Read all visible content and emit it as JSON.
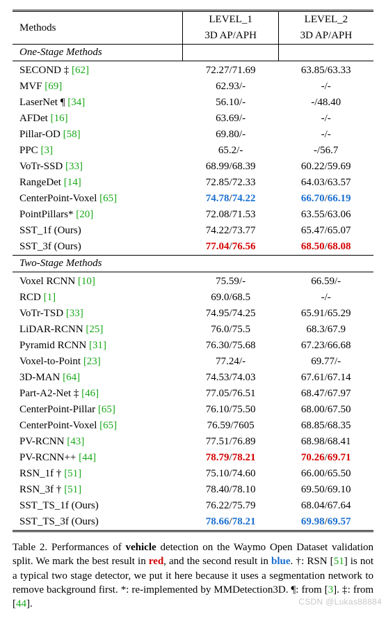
{
  "header": {
    "methods": "Methods",
    "level1_a": "LEVEL_1",
    "level1_b": "3D AP/APH",
    "level2_a": "LEVEL_2",
    "level2_b": "3D AP/APH"
  },
  "sections": {
    "one": "One-Stage Methods",
    "two": "Two-Stage Methods"
  },
  "one_stage": [
    {
      "name": "SECOND ‡ ",
      "cite": "[62]",
      "l1": {
        "text": "72.27/71.69"
      },
      "l2": {
        "text": "63.85/63.33"
      }
    },
    {
      "name": "MVF ",
      "cite": "[69]",
      "l1": {
        "text": "62.93/-"
      },
      "l2": {
        "text": "-/-"
      }
    },
    {
      "name": "LaserNet ¶ ",
      "cite": "[34]",
      "l1": {
        "text": "56.10/-"
      },
      "l2": {
        "text": "-/48.40"
      }
    },
    {
      "name": "AFDet ",
      "cite": "[16]",
      "l1": {
        "text": "63.69/-"
      },
      "l2": {
        "text": "-/-"
      }
    },
    {
      "name": "Pillar-OD ",
      "cite": "[58]",
      "l1": {
        "text": "69.80/-"
      },
      "l2": {
        "text": "-/-"
      }
    },
    {
      "name": "PPC ",
      "cite": "[3]",
      "l1": {
        "text": "65.2/-"
      },
      "l2": {
        "text": "-/56.7"
      }
    },
    {
      "name": "VoTr-SSD ",
      "cite": "[33]",
      "l1": {
        "text": "68.99/68.39"
      },
      "l2": {
        "text": "60.22/59.69"
      }
    },
    {
      "name": "RangeDet ",
      "cite": "[14]",
      "l1": {
        "text": "72.85/72.33"
      },
      "l2": {
        "text": "64.03/63.57"
      }
    },
    {
      "name": "CenterPoint-Voxel ",
      "cite": "[65]",
      "l1": {
        "a": "74.78",
        "b": "74.22",
        "a_color": "blue",
        "b_color": "blue"
      },
      "l2": {
        "a": "66.70",
        "b": "66.19",
        "a_color": "blue",
        "b_color": "blue"
      }
    },
    {
      "name": "PointPillars* ",
      "cite": "[20]",
      "l1": {
        "text": "72.08/71.53"
      },
      "l2": {
        "text": "63.55/63.06"
      }
    },
    {
      "name": "SST_1f (Ours)",
      "cite": "",
      "l1": {
        "text": "74.22/73.77"
      },
      "l2": {
        "text": "65.47/65.07"
      }
    },
    {
      "name": "SST_3f (Ours)",
      "cite": "",
      "l1": {
        "a": "77.04",
        "b": "76.56",
        "a_color": "red",
        "b_color": "red"
      },
      "l2": {
        "a": "68.50",
        "b": "68.08",
        "a_color": "red",
        "b_color": "red"
      }
    }
  ],
  "two_stage": [
    {
      "name": "Voxel RCNN ",
      "cite": "[10]",
      "l1": {
        "text": "75.59/-"
      },
      "l2": {
        "text": "66.59/-"
      }
    },
    {
      "name": "RCD ",
      "cite": "[1]",
      "l1": {
        "text": "69.0/68.5"
      },
      "l2": {
        "text": "-/-"
      }
    },
    {
      "name": "VoTr-TSD ",
      "cite": "[33]",
      "l1": {
        "text": "74.95/74.25"
      },
      "l2": {
        "text": "65.91/65.29"
      }
    },
    {
      "name": "LiDAR-RCNN ",
      "cite": "[25]",
      "l1": {
        "text": "76.0/75.5"
      },
      "l2": {
        "text": "68.3/67.9"
      }
    },
    {
      "name": "Pyramid RCNN ",
      "cite": "[31]",
      "l1": {
        "text": "76.30/75.68"
      },
      "l2": {
        "text": "67.23/66.68"
      }
    },
    {
      "name": "Voxel-to-Point ",
      "cite": "[23]",
      "l1": {
        "text": "77.24/-"
      },
      "l2": {
        "text": "69.77/-"
      }
    },
    {
      "name": "3D-MAN ",
      "cite": "[64]",
      "l1": {
        "text": "74.53/74.03"
      },
      "l2": {
        "text": "67.61/67.14"
      }
    },
    {
      "name": "Part-A2-Net ‡ ",
      "cite": "[46]",
      "l1": {
        "text": "77.05/76.51"
      },
      "l2": {
        "text": "68.47/67.97"
      }
    },
    {
      "name": "CenterPoint-Pillar ",
      "cite": "[65]",
      "l1": {
        "text": "76.10/75.50"
      },
      "l2": {
        "text": "68.00/67.50"
      }
    },
    {
      "name": "CenterPoint-Voxel ",
      "cite": "[65]",
      "l1": {
        "text": "76.59/7605"
      },
      "l2": {
        "text": "68.85/68.35"
      }
    },
    {
      "name": "PV-RCNN ",
      "cite": "[43]",
      "l1": {
        "text": "77.51/76.89"
      },
      "l2": {
        "text": "68.98/68.41"
      }
    },
    {
      "name": "PV-RCNN++ ",
      "cite": "[44]",
      "l1": {
        "a": "78.79",
        "b": "78.21",
        "a_color": "red",
        "b_color": "red"
      },
      "l2": {
        "a": "70.26",
        "b": "69.71",
        "a_color": "red",
        "b_color": "red"
      }
    },
    {
      "name": "RSN_1f † ",
      "cite": "[51]",
      "l1": {
        "text": "75.10/74.60"
      },
      "l2": {
        "text": "66.00/65.50"
      }
    },
    {
      "name": "RSN_3f † ",
      "cite": "[51]",
      "l1": {
        "text": "78.40/78.10"
      },
      "l2": {
        "text": "69.50/69.10"
      }
    },
    {
      "name": "SST_TS_1f (Ours)",
      "cite": "",
      "l1": {
        "text": "76.22/75.79"
      },
      "l2": {
        "text": "68.04/67.64"
      }
    },
    {
      "name": "SST_TS_3f (Ours)",
      "cite": "",
      "l1": {
        "a": "78.66",
        "b": "78.21",
        "a_color": "blue",
        "b_color": "blue"
      },
      "l2": {
        "a": "69.98",
        "b": "69.57",
        "a_color": "blue",
        "b_color": "blue"
      }
    }
  ],
  "caption": {
    "prefix": "Table 2. Performances of ",
    "bold": "vehicle",
    "mid1": " detection on the Waymo Open Dataset validation split. We mark the best result in ",
    "red": "red",
    "mid2": ", and the second result in ",
    "blue": "blue",
    "mid3": ". †: RSN [",
    "c1": "51",
    "mid4": "] is not a typical two stage detector, we put it here because it uses a segmentation network to remove background first. *: re-implemented by MMDetection3D. ¶: from [",
    "c2": "3",
    "mid5": "]. ‡: from [",
    "c3": "44",
    "end": "]."
  },
  "watermark": "CSDN @Lukas88884"
}
